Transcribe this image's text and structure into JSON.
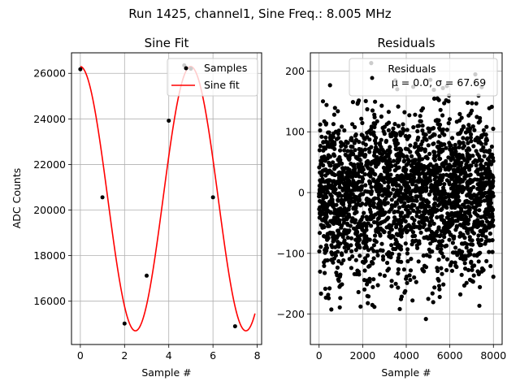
{
  "figure": {
    "suptitle": "Run 1425, channel1, Sine Freq.: 8.005 MHz"
  },
  "chart_data": [
    {
      "type": "line",
      "title": "Sine Fit",
      "xlabel": "Sample #",
      "ylabel": "ADC Counts",
      "xlim": [
        -0.4,
        8.2
      ],
      "ylim": [
        14100,
        26900
      ],
      "xticks": [
        0,
        2,
        4,
        6,
        8
      ],
      "yticks": [
        16000,
        18000,
        20000,
        22000,
        24000,
        26000
      ],
      "grid": true,
      "legend": {
        "placement": "upper-right",
        "entries": [
          "Samples",
          "Sine fit"
        ]
      },
      "series": [
        {
          "name": "Samples",
          "kind": "scatter",
          "color": "#000000",
          "x": [
            0,
            1,
            2,
            3,
            4,
            4.7,
            5,
            6,
            7
          ],
          "y": [
            26180,
            20560,
            15020,
            17120,
            23920,
            26350,
            26200,
            20560,
            14900
          ]
        },
        {
          "name": "Sine fit",
          "kind": "line",
          "color": "#ff0000",
          "model": {
            "offset": 20500,
            "amplitude": 5800,
            "period_samples": 4.997,
            "phase_rad": 1.58
          },
          "x_range": [
            0,
            7.9
          ]
        }
      ]
    },
    {
      "type": "scatter",
      "title": "Residuals",
      "xlabel": "Sample #",
      "ylabel": "",
      "xlim": [
        -400,
        8400
      ],
      "ylim": [
        -250,
        230
      ],
      "xticks": [
        0,
        2000,
        4000,
        6000,
        8000
      ],
      "yticks": [
        -200,
        -100,
        0,
        100,
        200
      ],
      "grid": true,
      "legend": {
        "placement": "upper-right",
        "entries": [
          "Residuals",
          "μ = 0.0, σ = 67.69"
        ]
      },
      "series": [
        {
          "name": "Residuals",
          "color": "#000000",
          "mu": 0.0,
          "sigma": 67.69,
          "x_range": [
            0,
            8000
          ]
        }
      ]
    }
  ]
}
